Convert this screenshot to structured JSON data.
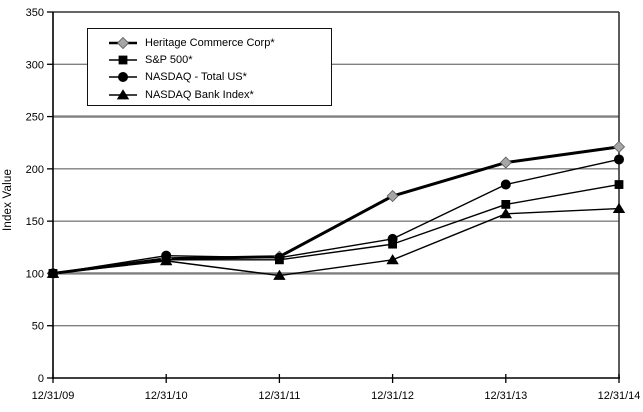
{
  "chart_data": {
    "type": "line",
    "title": "",
    "ylabel": "Index Value",
    "xlabel": "",
    "ylim": [
      0,
      350
    ],
    "yticks": [
      0,
      50,
      100,
      150,
      200,
      250,
      300,
      350
    ],
    "categories": [
      "12/31/09",
      "12/31/10",
      "12/31/11",
      "12/31/12",
      "12/31/13",
      "12/31/14"
    ],
    "series": [
      {
        "name": "Heritage Commerce Corp*",
        "marker": "diamond",
        "marker_color": "#a6a6a6",
        "marker_edge": "#595959",
        "line_color": "#000000",
        "line_width": 3,
        "values": [
          100,
          114,
          116,
          174,
          206,
          221
        ]
      },
      {
        "name": "S&P 500*",
        "marker": "square",
        "marker_color": "#000000",
        "marker_edge": "#000000",
        "line_color": "#000000",
        "line_width": 1.4,
        "values": [
          100,
          113,
          113,
          128,
          166,
          185
        ]
      },
      {
        "name": "NASDAQ - Total US*",
        "marker": "circle",
        "marker_color": "#000000",
        "marker_edge": "#000000",
        "line_color": "#000000",
        "line_width": 1.4,
        "values": [
          100,
          117,
          115,
          133,
          185,
          209
        ]
      },
      {
        "name": "NASDAQ Bank Index*",
        "marker": "triangle",
        "marker_color": "#000000",
        "marker_edge": "#000000",
        "line_color": "#000000",
        "line_width": 1.4,
        "values": [
          100,
          112,
          98,
          113,
          157,
          162
        ]
      }
    ],
    "grid": true,
    "grid_color": "#7f7f7f",
    "axis_color": "#000000",
    "border_color": "#333333",
    "background_color": "#ffffff",
    "legend_position": "top-left-inside"
  }
}
